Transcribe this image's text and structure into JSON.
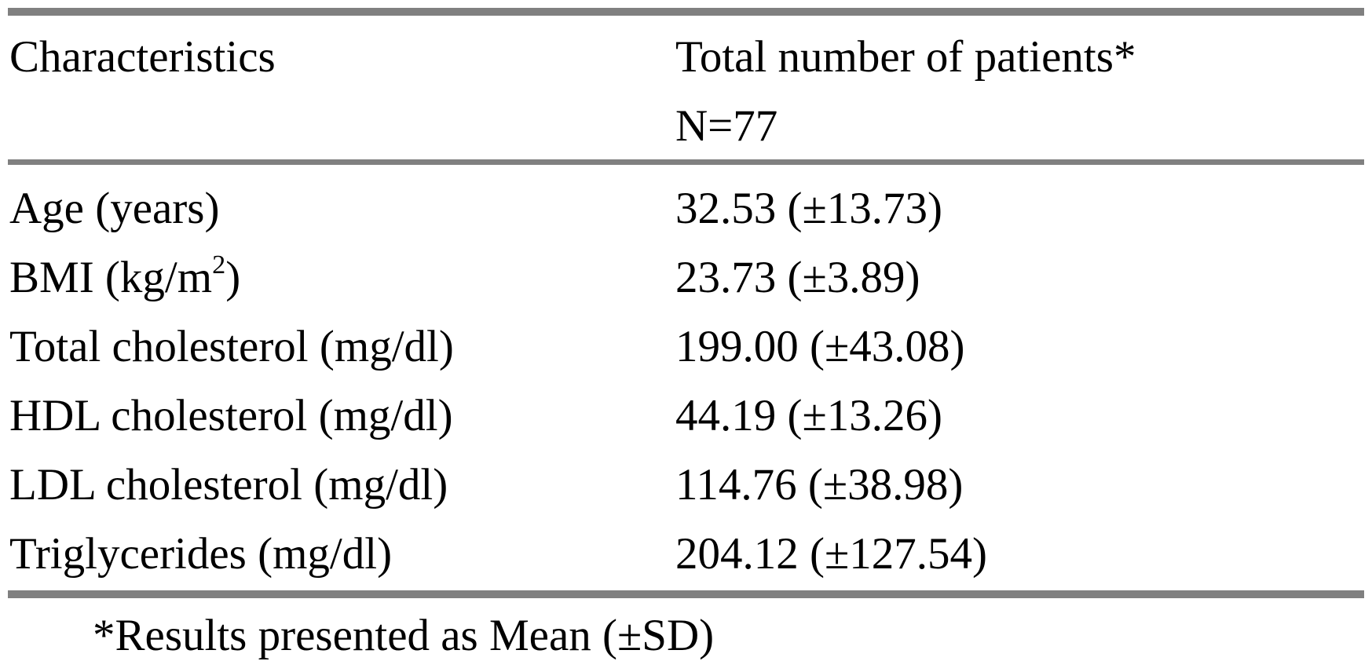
{
  "table": {
    "header": {
      "characteristics": "Characteristics",
      "total": "Total number of patients*",
      "n": "N=77"
    },
    "rows": [
      {
        "label": "Age (years)",
        "value": "32.53 (±13.73)"
      },
      {
        "label_prefix": "BMI (kg/m",
        "label_sup": "2",
        "label_suffix": ")",
        "value": "23.73 (±3.89)"
      },
      {
        "label": "Total cholesterol (mg/dl)",
        "value": "199.00 (±43.08)"
      },
      {
        "label": "HDL cholesterol (mg/dl)",
        "value": "44.19 (±13.26)"
      },
      {
        "label": "LDL cholesterol (mg/dl)",
        "value": "114.76 (±38.98)"
      },
      {
        "label": "Triglycerides (mg/dl)",
        "value": "204.12 (±127.54)"
      }
    ],
    "footnote": "*Results presented as Mean (±SD)"
  }
}
